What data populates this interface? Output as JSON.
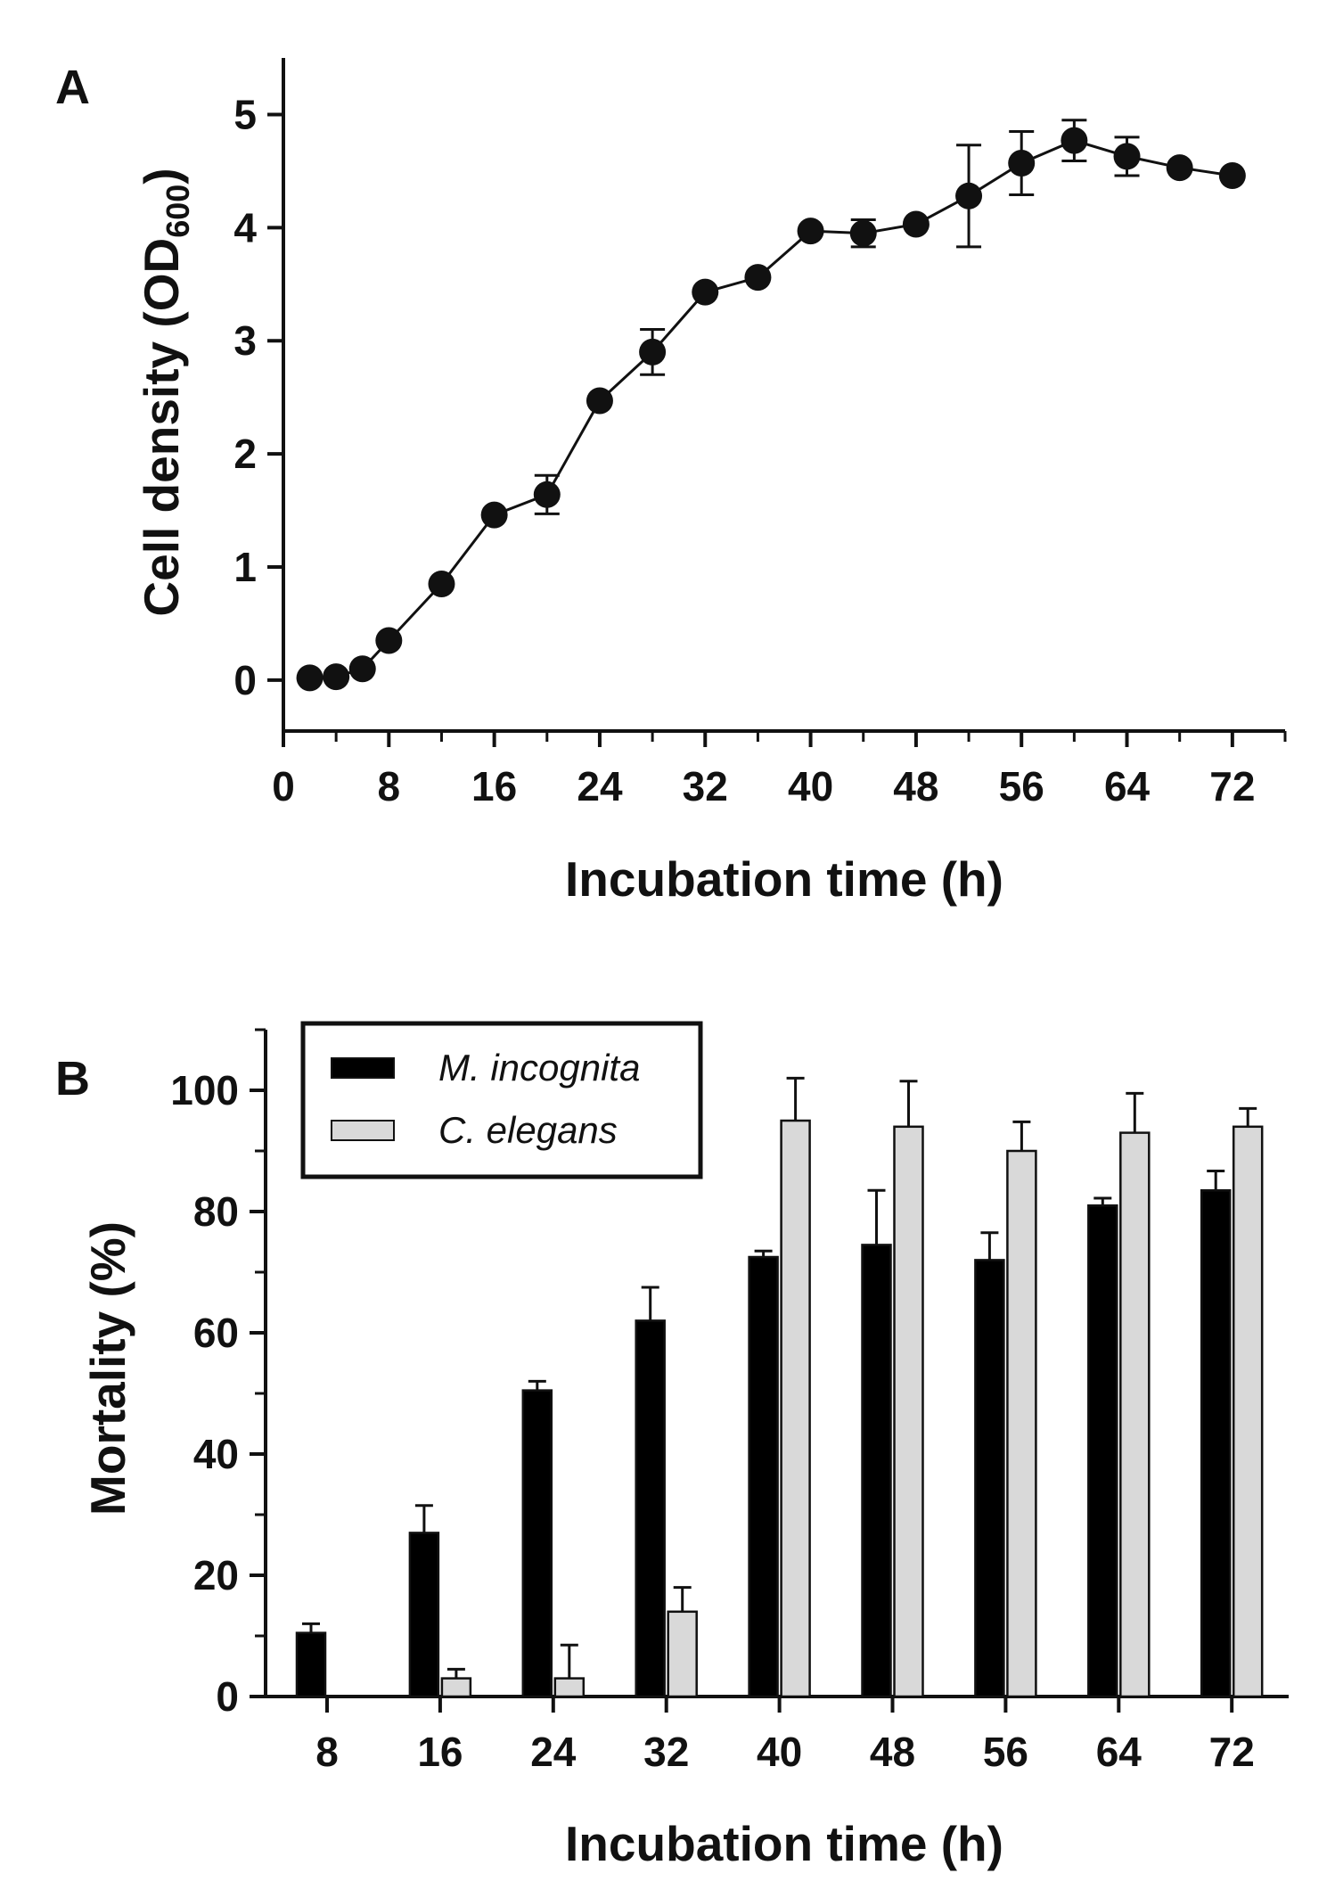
{
  "chart_data": [
    {
      "panel": "A",
      "type": "line",
      "xlabel": "Incubation time (h)",
      "ylabel": "Cell density (OD",
      "ylabel_sub": "600",
      "ylabel_close": ")",
      "xlim": [
        0,
        76
      ],
      "ylim": [
        -0.45,
        5.5
      ],
      "xticks": [
        0,
        8,
        16,
        24,
        32,
        40,
        48,
        56,
        64,
        72
      ],
      "yticks": [
        0,
        1,
        2,
        3,
        4,
        5
      ],
      "x": [
        2,
        4,
        6,
        8,
        12,
        16,
        20,
        24,
        28,
        32,
        36,
        40,
        44,
        48,
        52,
        56,
        60,
        64,
        68,
        72
      ],
      "y": [
        0.02,
        0.03,
        0.1,
        0.35,
        0.85,
        1.46,
        1.64,
        2.47,
        2.9,
        3.43,
        3.56,
        3.97,
        3.95,
        4.03,
        4.28,
        4.57,
        4.77,
        4.63,
        4.53,
        4.46
      ],
      "error": [
        0,
        0,
        0,
        0,
        0,
        0,
        0.17,
        0,
        0.2,
        0,
        0,
        0,
        0.12,
        0,
        0.45,
        0.28,
        0.18,
        0.17,
        0,
        0
      ]
    },
    {
      "panel": "B",
      "type": "bar",
      "xlabel": "Incubation time (h)",
      "ylabel": "Mortality (%)",
      "ylim": [
        0,
        110
      ],
      "yticks": [
        0,
        20,
        40,
        60,
        80,
        100
      ],
      "categories": [
        "8",
        "16",
        "24",
        "32",
        "40",
        "48",
        "56",
        "64",
        "72"
      ],
      "series": [
        {
          "name": "M. incognita",
          "color": "#000000",
          "values": [
            10.5,
            27,
            50.5,
            62,
            72.5,
            74.5,
            72,
            81,
            83.5
          ],
          "error": [
            1.5,
            4.5,
            1.5,
            5.5,
            1,
            9,
            4.5,
            1.2,
            3.2
          ]
        },
        {
          "name": "C. elegans",
          "color": "#d9d9d9",
          "values": [
            0,
            3,
            3,
            14,
            95,
            94,
            90,
            93,
            94
          ],
          "error": [
            0,
            1.5,
            5.5,
            4,
            7,
            7.5,
            4.8,
            6.5,
            3
          ]
        }
      ]
    }
  ]
}
